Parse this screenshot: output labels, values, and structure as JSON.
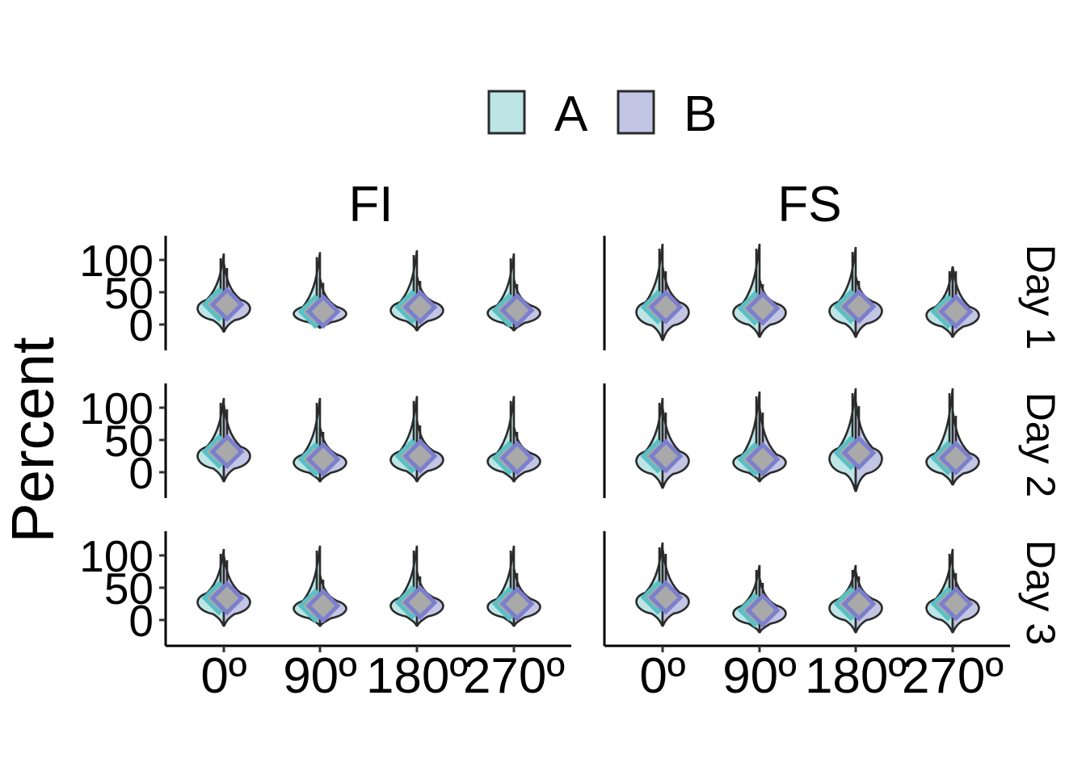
{
  "chart_data": {
    "type": "violin",
    "ylabel": "Percent",
    "xlabel": "",
    "categories": [
      "0º",
      "90º",
      "180º",
      "270º"
    ],
    "y_ticks": [
      0,
      50,
      100
    ],
    "ylim": [
      -40,
      135
    ],
    "legend": {
      "placement": "top",
      "entries": [
        {
          "name": "A",
          "fill": "#bde5e6",
          "point_color": "#5bc0c5"
        },
        {
          "name": "B",
          "fill": "#c2c5e3",
          "point_color": "#7b7fcc"
        }
      ]
    },
    "facet_columns": [
      "FI",
      "FS"
    ],
    "facet_rows": [
      "Day 1",
      "Day 2",
      "Day 3"
    ],
    "mean_point_fill": "#a9a9a9",
    "panels": [
      {
        "row": "Day 1",
        "col": "FI",
        "groups": [
          {
            "category": "0º",
            "A": {
              "mean": 31,
              "min": -12,
              "max": 110
            },
            "B": {
              "mean": 31,
              "min": -12,
              "max": 95
            }
          },
          {
            "category": "90º",
            "A": {
              "mean": 20,
              "min": -6,
              "max": 112
            },
            "B": {
              "mean": 20,
              "min": -6,
              "max": 72
            }
          },
          {
            "category": "180º",
            "A": {
              "mean": 27,
              "min": -10,
              "max": 115
            },
            "B": {
              "mean": 27,
              "min": -10,
              "max": 75
            }
          },
          {
            "category": "270º",
            "A": {
              "mean": 22,
              "min": -10,
              "max": 110
            },
            "B": {
              "mean": 22,
              "min": -10,
              "max": 70
            }
          }
        ]
      },
      {
        "row": "Day 1",
        "col": "FS",
        "groups": [
          {
            "category": "0º",
            "A": {
              "mean": 27,
              "min": -25,
              "max": 125
            },
            "B": {
              "mean": 27,
              "min": -25,
              "max": 90
            }
          },
          {
            "category": "90º",
            "A": {
              "mean": 25,
              "min": -20,
              "max": 125
            },
            "B": {
              "mean": 25,
              "min": -20,
              "max": 70
            }
          },
          {
            "category": "180º",
            "A": {
              "mean": 28,
              "min": -20,
              "max": 120
            },
            "B": {
              "mean": 28,
              "min": -20,
              "max": 75
            }
          },
          {
            "category": "270º",
            "A": {
              "mean": 20,
              "min": -20,
              "max": 90
            },
            "B": {
              "mean": 20,
              "min": -20,
              "max": 90
            }
          }
        ]
      },
      {
        "row": "Day 2",
        "col": "FI",
        "groups": [
          {
            "category": "0º",
            "A": {
              "mean": 32,
              "min": -15,
              "max": 115
            },
            "B": {
              "mean": 32,
              "min": -15,
              "max": 105
            }
          },
          {
            "category": "90º",
            "A": {
              "mean": 20,
              "min": -15,
              "max": 115
            },
            "B": {
              "mean": 20,
              "min": -15,
              "max": 70
            }
          },
          {
            "category": "180º",
            "A": {
              "mean": 25,
              "min": -15,
              "max": 118
            },
            "B": {
              "mean": 25,
              "min": -15,
              "max": 80
            }
          },
          {
            "category": "270º",
            "A": {
              "mean": 22,
              "min": -15,
              "max": 118
            },
            "B": {
              "mean": 22,
              "min": -15,
              "max": 70
            }
          }
        ]
      },
      {
        "row": "Day 2",
        "col": "FS",
        "groups": [
          {
            "category": "0º",
            "A": {
              "mean": 25,
              "min": -25,
              "max": 115
            },
            "B": {
              "mean": 25,
              "min": -25,
              "max": 100
            }
          },
          {
            "category": "90º",
            "A": {
              "mean": 20,
              "min": -15,
              "max": 125
            },
            "B": {
              "mean": 20,
              "min": -15,
              "max": 100
            }
          },
          {
            "category": "180º",
            "A": {
              "mean": 30,
              "min": -30,
              "max": 130
            },
            "B": {
              "mean": 30,
              "min": -30,
              "max": 110
            }
          },
          {
            "category": "270º",
            "A": {
              "mean": 22,
              "min": -20,
              "max": 130
            },
            "B": {
              "mean": 22,
              "min": -20,
              "max": 95
            }
          }
        ]
      },
      {
        "row": "Day 3",
        "col": "FI",
        "groups": [
          {
            "category": "0º",
            "A": {
              "mean": 34,
              "min": -10,
              "max": 110
            },
            "B": {
              "mean": 34,
              "min": -10,
              "max": 100
            }
          },
          {
            "category": "90º",
            "A": {
              "mean": 22,
              "min": -10,
              "max": 115
            },
            "B": {
              "mean": 22,
              "min": -10,
              "max": 70
            }
          },
          {
            "category": "180º",
            "A": {
              "mean": 27,
              "min": -10,
              "max": 115
            },
            "B": {
              "mean": 27,
              "min": -10,
              "max": 75
            }
          },
          {
            "category": "270º",
            "A": {
              "mean": 25,
              "min": -10,
              "max": 115
            },
            "B": {
              "mean": 25,
              "min": -10,
              "max": 80
            }
          }
        ]
      },
      {
        "row": "Day 3",
        "col": "FS",
        "groups": [
          {
            "category": "0º",
            "A": {
              "mean": 35,
              "min": -10,
              "max": 120
            },
            "B": {
              "mean": 35,
              "min": -10,
              "max": 110
            }
          },
          {
            "category": "90º",
            "A": {
              "mean": 15,
              "min": -20,
              "max": 85
            },
            "B": {
              "mean": 15,
              "min": -20,
              "max": 65
            }
          },
          {
            "category": "180º",
            "A": {
              "mean": 25,
              "min": -20,
              "max": 85
            },
            "B": {
              "mean": 25,
              "min": -20,
              "max": 75
            }
          },
          {
            "category": "270º",
            "A": {
              "mean": 25,
              "min": -20,
              "max": 110
            },
            "B": {
              "mean": 25,
              "min": -20,
              "max": 80
            }
          }
        ]
      }
    ]
  }
}
